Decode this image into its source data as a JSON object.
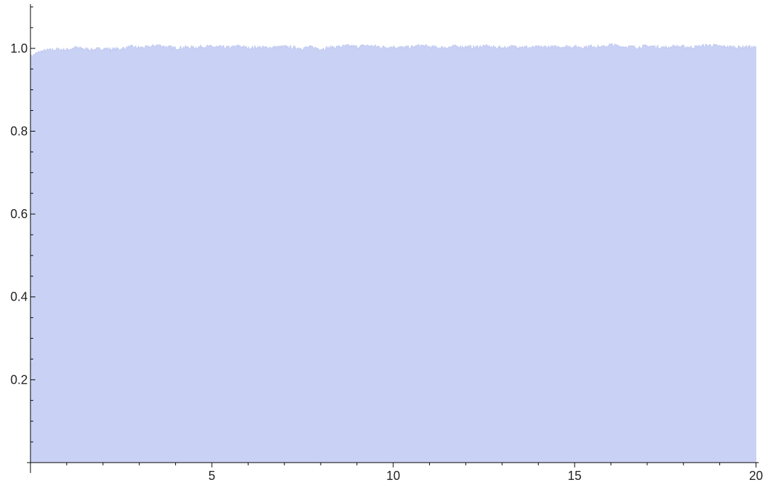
{
  "chart_data": {
    "type": "area",
    "title": "",
    "xlabel": "",
    "ylabel": "",
    "xlim": [
      0,
      20
    ],
    "ylim": [
      0,
      1.1
    ],
    "x_ticks": [
      5,
      10,
      15,
      20
    ],
    "x_tick_labels": [
      "5",
      "10",
      "15",
      "20"
    ],
    "y_ticks": [
      0.2,
      0.4,
      0.6,
      0.8,
      1.0
    ],
    "y_tick_labels": [
      "0.2",
      "0.4",
      "0.6",
      "0.8",
      "1.0"
    ],
    "x_minor_step": 1,
    "y_minor_step": 0.05,
    "grid": false,
    "fill_color": "#c9d1f4",
    "line_color": "#b8c2ee",
    "series": [
      {
        "x_step": 0.25,
        "x": [
          0,
          0.25,
          0.5,
          0.75,
          1,
          1.25,
          1.5,
          1.75,
          2,
          2.25,
          2.5,
          2.75,
          3,
          3.25,
          3.5,
          3.75,
          4,
          4.25,
          4.5,
          4.75,
          5,
          5.25,
          5.5,
          5.75,
          6,
          6.25,
          6.5,
          6.75,
          7,
          7.25,
          7.5,
          7.75,
          8,
          8.25,
          8.5,
          8.75,
          9,
          9.25,
          9.5,
          9.75,
          10,
          10.25,
          10.5,
          10.75,
          11,
          11.25,
          11.5,
          11.75,
          12,
          12.25,
          12.5,
          12.75,
          13,
          13.25,
          13.5,
          13.75,
          14,
          14.25,
          14.5,
          14.75,
          15,
          15.25,
          15.5,
          15.75,
          16,
          16.25,
          16.5,
          16.75,
          17,
          17.25,
          17.5,
          17.75,
          18,
          18.25,
          18.5,
          18.75,
          19,
          19.25,
          19.5,
          19.75,
          20
        ],
        "values": [
          0.98,
          0.992,
          0.996,
          0.998,
          0.997,
          1.002,
          0.999,
          0.997,
          1.0,
          0.998,
          0.999,
          1.004,
          1.002,
          1.003,
          1.008,
          1.004,
          1.001,
          1.003,
          1.002,
          1.005,
          1.004,
          1.003,
          1.002,
          1.006,
          1.001,
          1.003,
          1.002,
          1.003,
          1.004,
          1.002,
          1.001,
          1.003,
          0.999,
          1.002,
          1.004,
          1.006,
          1.004,
          1.007,
          1.005,
          1.003,
          1.004,
          1.002,
          1.003,
          1.007,
          1.004,
          1.002,
          1.003,
          1.005,
          1.004,
          1.003,
          1.006,
          1.003,
          1.002,
          1.004,
          1.005,
          1.002,
          1.003,
          1.004,
          1.003,
          1.005,
          1.004,
          1.003,
          1.006,
          1.003,
          1.009,
          1.005,
          1.004,
          1.003,
          1.006,
          1.004,
          1.002,
          1.005,
          1.004,
          1.003,
          1.006,
          1.008,
          1.005,
          1.004,
          1.003,
          1.004,
          1.002
        ]
      }
    ]
  }
}
